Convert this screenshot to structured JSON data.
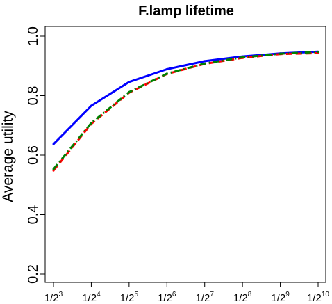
{
  "chart_data": {
    "type": "line",
    "title": "F.lamp lifetime",
    "xlabel": "",
    "ylabel": "Average utility",
    "x_tick_labels": [
      {
        "base": "1/2",
        "exp": "3"
      },
      {
        "base": "1/2",
        "exp": "4"
      },
      {
        "base": "1/2",
        "exp": "5"
      },
      {
        "base": "1/2",
        "exp": "6"
      },
      {
        "base": "1/2",
        "exp": "7"
      },
      {
        "base": "1/2",
        "exp": "8"
      },
      {
        "base": "1/2",
        "exp": "9"
      },
      {
        "base": "1/2",
        "exp": "10"
      }
    ],
    "x": [
      3,
      4,
      5,
      6,
      7,
      8,
      9,
      10
    ],
    "y_ticks": [
      "0.2",
      "0.4",
      "0.6",
      "0.8",
      "1.0"
    ],
    "ylim": [
      0.2,
      1.0
    ],
    "grid": false,
    "series": [
      {
        "color": "#0000ff",
        "dash": "solid",
        "values": [
          0.637,
          0.766,
          0.846,
          0.889,
          0.916,
          0.932,
          0.942,
          0.948
        ]
      },
      {
        "color": "#ff0000",
        "dash": "dashed",
        "values": [
          0.548,
          0.705,
          0.81,
          0.873,
          0.907,
          0.927,
          0.94,
          0.943
        ]
      },
      {
        "color": "#008000",
        "dash": "dashdot",
        "values": [
          0.553,
          0.708,
          0.812,
          0.874,
          0.908,
          0.929,
          0.941,
          0.947
        ]
      }
    ]
  }
}
